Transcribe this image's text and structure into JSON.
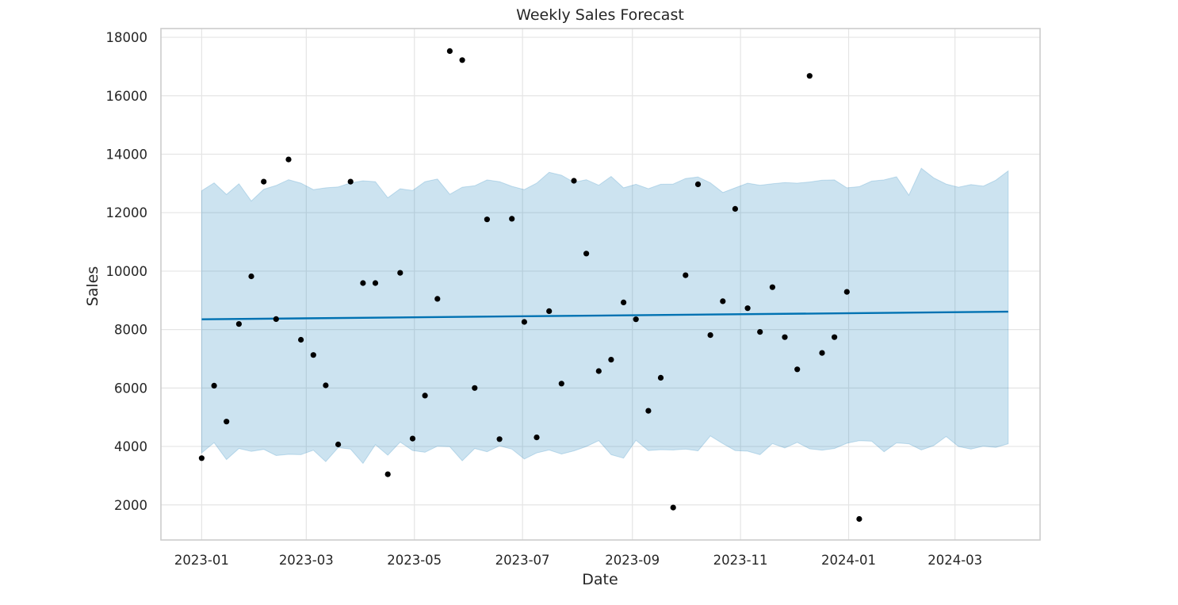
{
  "colors": {
    "forecast": "#0072b2",
    "observed": "#000000",
    "grid": "#e5e5e5",
    "frame": "#cccccc"
  },
  "chart_data": {
    "type": "line",
    "title": "Weekly Sales Forecast",
    "xlabel": "Date",
    "ylabel": "Sales",
    "grid": true,
    "xlim": [
      "2022-12-09",
      "2024-04-18"
    ],
    "ylim": [
      800,
      18300
    ],
    "x_ticks": [
      "2023-01-01",
      "2023-03-01",
      "2023-05-01",
      "2023-07-01",
      "2023-09-01",
      "2023-11-01",
      "2024-01-01",
      "2024-03-01"
    ],
    "x_tick_labels": [
      "2023-01",
      "2023-03",
      "2023-05",
      "2023-07",
      "2023-09",
      "2023-11",
      "2024-01",
      "2024-03"
    ],
    "y_ticks": [
      2000,
      4000,
      6000,
      8000,
      10000,
      12000,
      14000,
      16000,
      18000
    ],
    "y_tick_labels": [
      "2000",
      "4000",
      "6000",
      "8000",
      "10000",
      "12000",
      "14000",
      "16000",
      "18000"
    ],
    "forecast": {
      "x": [
        "2023-01-01",
        "2024-03-31"
      ],
      "y": [
        8350,
        8610
      ]
    },
    "uncertainty_band": {
      "x": [
        "2023-01-01",
        "2023-01-08",
        "2023-01-15",
        "2023-01-22",
        "2023-01-29",
        "2023-02-05",
        "2023-02-12",
        "2023-02-19",
        "2023-02-26",
        "2023-03-05",
        "2023-03-12",
        "2023-03-19",
        "2023-03-26",
        "2023-04-02",
        "2023-04-09",
        "2023-04-16",
        "2023-04-23",
        "2023-04-30",
        "2023-05-07",
        "2023-05-14",
        "2023-05-21",
        "2023-05-28",
        "2023-06-04",
        "2023-06-11",
        "2023-06-18",
        "2023-06-25",
        "2023-07-02",
        "2023-07-09",
        "2023-07-16",
        "2023-07-23",
        "2023-07-30",
        "2023-08-06",
        "2023-08-13",
        "2023-08-20",
        "2023-08-27",
        "2023-09-03",
        "2023-09-10",
        "2023-09-17",
        "2023-09-24",
        "2023-10-01",
        "2023-10-08",
        "2023-10-15",
        "2023-10-22",
        "2023-10-29",
        "2023-11-05",
        "2023-11-12",
        "2023-11-19",
        "2023-11-26",
        "2023-12-03",
        "2023-12-10",
        "2023-12-17",
        "2023-12-24",
        "2023-12-31",
        "2024-01-07",
        "2024-01-14",
        "2024-01-21",
        "2024-01-28",
        "2024-02-04",
        "2024-02-11",
        "2024-02-18",
        "2024-02-25",
        "2024-03-03",
        "2024-03-10",
        "2024-03-17",
        "2024-03-24",
        "2024-03-31"
      ],
      "upper": [
        12750,
        13020,
        12620,
        12990,
        12400,
        12800,
        12930,
        13130,
        13010,
        12790,
        12850,
        12880,
        13020,
        13090,
        13060,
        12510,
        12820,
        12760,
        13060,
        13150,
        12630,
        12870,
        12920,
        13120,
        13060,
        12900,
        12790,
        13010,
        13380,
        13280,
        13040,
        13130,
        12940,
        13240,
        12850,
        12970,
        12820,
        12970,
        12980,
        13170,
        13220,
        13020,
        12690,
        12850,
        13010,
        12940,
        12990,
        13030,
        13010,
        13050,
        13110,
        13120,
        12850,
        12890,
        13080,
        13120,
        13230,
        12600,
        13520,
        13190,
        12980,
        12870,
        12960,
        12910,
        13110,
        13430
      ],
      "lower": [
        3780,
        4130,
        3550,
        3930,
        3830,
        3900,
        3690,
        3730,
        3720,
        3870,
        3480,
        3960,
        3910,
        3420,
        4060,
        3700,
        4150,
        3860,
        3800,
        4010,
        3990,
        3510,
        3930,
        3820,
        4020,
        3910,
        3570,
        3780,
        3880,
        3740,
        3850,
        4000,
        4200,
        3720,
        3600,
        4210,
        3860,
        3890,
        3880,
        3910,
        3850,
        4360,
        4100,
        3860,
        3840,
        3720,
        4100,
        3950,
        4140,
        3920,
        3870,
        3930,
        4110,
        4200,
        4180,
        3820,
        4120,
        4090,
        3880,
        4030,
        4340,
        4000,
        3910,
        4010,
        3970,
        4090
      ]
    },
    "series": [
      {
        "name": "",
        "type": "scatter",
        "x": [
          "2023-01-01",
          "2023-01-08",
          "2023-01-15",
          "2023-01-22",
          "2023-01-29",
          "2023-02-05",
          "2023-02-12",
          "2023-02-19",
          "2023-02-26",
          "2023-03-05",
          "2023-03-12",
          "2023-03-19",
          "2023-03-26",
          "2023-04-02",
          "2023-04-09",
          "2023-04-16",
          "2023-04-23",
          "2023-04-30",
          "2023-05-07",
          "2023-05-14",
          "2023-05-21",
          "2023-05-28",
          "2023-06-04",
          "2023-06-11",
          "2023-06-18",
          "2023-06-25",
          "2023-07-02",
          "2023-07-09",
          "2023-07-16",
          "2023-07-23",
          "2023-07-30",
          "2023-08-06",
          "2023-08-13",
          "2023-08-20",
          "2023-08-27",
          "2023-09-03",
          "2023-09-10",
          "2023-09-17",
          "2023-09-24",
          "2023-10-01",
          "2023-10-08",
          "2023-10-15",
          "2023-10-22",
          "2023-10-29",
          "2023-11-05",
          "2023-11-12",
          "2023-11-19",
          "2023-11-26",
          "2023-12-03",
          "2023-12-10",
          "2023-12-17",
          "2023-12-24",
          "2023-12-31",
          "2024-01-07"
        ],
        "y": [
          3600,
          6080,
          4850,
          8190,
          9820,
          13060,
          8360,
          13820,
          7650,
          7130,
          6090,
          4070,
          13060,
          9590,
          9590,
          3050,
          9940,
          4270,
          5740,
          9050,
          17530,
          17220,
          6000,
          11770,
          4250,
          11790,
          8260,
          4310,
          8630,
          6150,
          13090,
          10600,
          6580,
          6970,
          8930,
          8350,
          5220,
          6350,
          1910,
          9860,
          12970,
          7810,
          8970,
          12130,
          8730,
          7920,
          9450,
          7740,
          6640,
          16680,
          7200,
          7740,
          9290,
          1520
        ]
      }
    ]
  }
}
